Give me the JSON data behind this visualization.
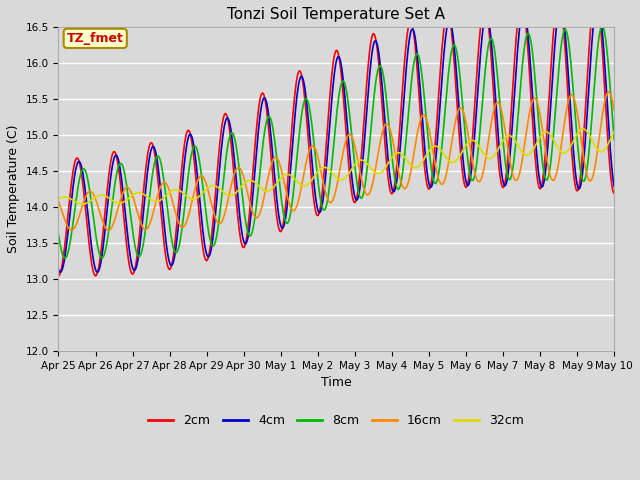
{
  "title": "Tonzi Soil Temperature Set A",
  "xlabel": "Time",
  "ylabel": "Soil Temperature (C)",
  "ylim": [
    12.0,
    16.5
  ],
  "fig_facecolor": "#d9d9d9",
  "plot_facecolor": "#d9d9d9",
  "annotation_text": "TZ_fmet",
  "annotation_bg": "#ffffcc",
  "annotation_border": "#aa8800",
  "annotation_text_color": "#cc0000",
  "legend_labels": [
    "2cm",
    "4cm",
    "8cm",
    "16cm",
    "32cm"
  ],
  "line_colors": [
    "#ff0000",
    "#0000cc",
    "#00bb00",
    "#ff8800",
    "#dddd00"
  ],
  "x_tick_labels": [
    "Apr 25",
    "Apr 26",
    "Apr 27",
    "Apr 28",
    "Apr 29",
    "Apr 30",
    "May 1",
    "May 2",
    "May 3",
    "May 4",
    "May 5",
    "May 6",
    "May 7",
    "May 8",
    "May 9",
    "May 10"
  ],
  "grid_color": "#ffffff",
  "line_width": 1.2,
  "tick_fontsize": 7.5,
  "label_fontsize": 9,
  "title_fontsize": 11
}
